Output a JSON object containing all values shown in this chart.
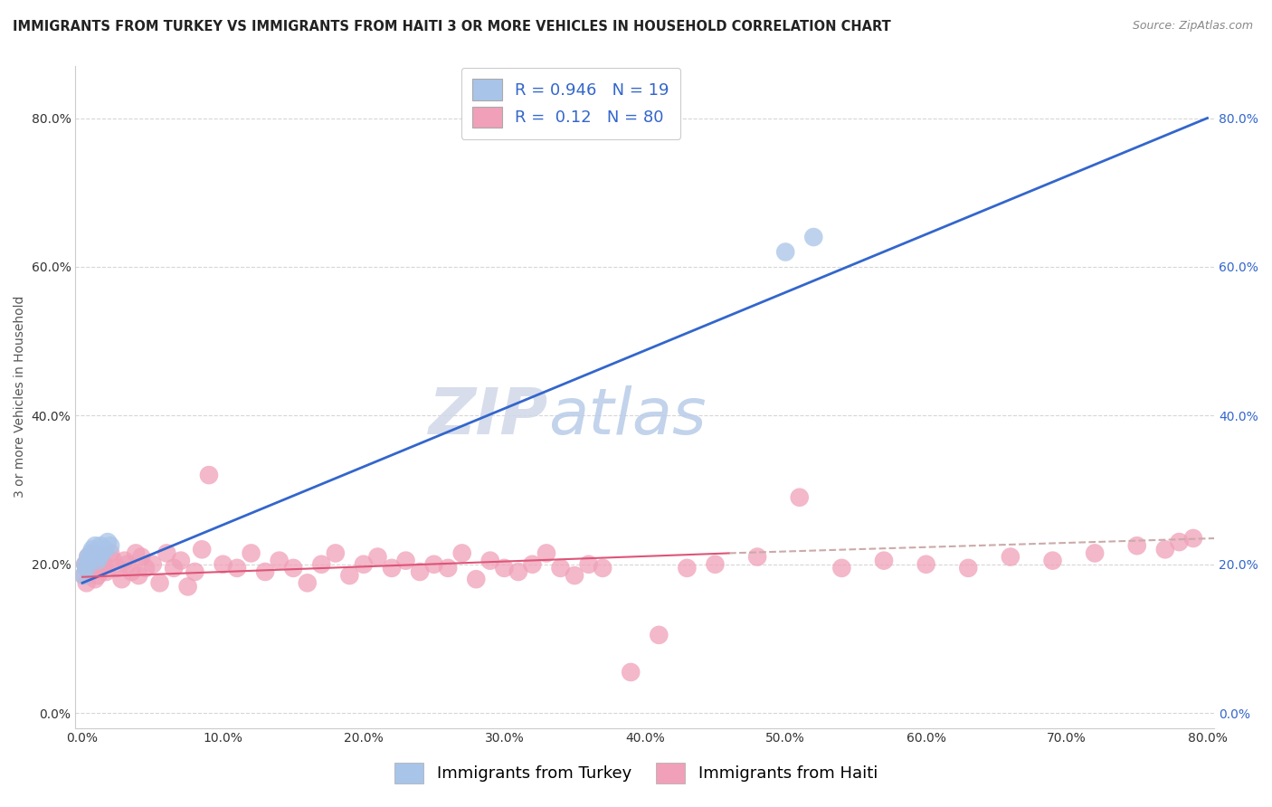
{
  "title": "IMMIGRANTS FROM TURKEY VS IMMIGRANTS FROM HAITI 3 OR MORE VEHICLES IN HOUSEHOLD CORRELATION CHART",
  "source": "Source: ZipAtlas.com",
  "ylabel": "3 or more Vehicles in Household",
  "legend_label1": "Immigrants from Turkey",
  "legend_label2": "Immigrants from Haiti",
  "turkey_R": 0.946,
  "turkey_N": 19,
  "haiti_R": 0.12,
  "haiti_N": 80,
  "turkey_color": "#a8c4e8",
  "haiti_color": "#f0a0b8",
  "turkey_line_color": "#3366cc",
  "haiti_line_color": "#dd5577",
  "haiti_line_dash_color": "#ccaaaa",
  "bg_color": "#ffffff",
  "grid_color": "#cccccc",
  "xlim": [
    -0.005,
    0.805
  ],
  "ylim": [
    -0.02,
    0.87
  ],
  "x_ticks": [
    0.0,
    0.1,
    0.2,
    0.3,
    0.4,
    0.5,
    0.6,
    0.7,
    0.8
  ],
  "y_ticks": [
    0.0,
    0.2,
    0.4,
    0.6,
    0.8
  ],
  "turkey_x": [
    0.001,
    0.002,
    0.003,
    0.004,
    0.005,
    0.006,
    0.007,
    0.008,
    0.009,
    0.01,
    0.011,
    0.012,
    0.013,
    0.014,
    0.016,
    0.018,
    0.02,
    0.5,
    0.52
  ],
  "turkey_y": [
    0.185,
    0.2,
    0.195,
    0.21,
    0.205,
    0.215,
    0.22,
    0.21,
    0.225,
    0.215,
    0.205,
    0.21,
    0.225,
    0.215,
    0.22,
    0.23,
    0.225,
    0.62,
    0.64
  ],
  "haiti_x": [
    0.001,
    0.002,
    0.003,
    0.004,
    0.005,
    0.006,
    0.007,
    0.008,
    0.009,
    0.01,
    0.011,
    0.012,
    0.013,
    0.015,
    0.017,
    0.02,
    0.022,
    0.025,
    0.028,
    0.03,
    0.032,
    0.035,
    0.038,
    0.04,
    0.042,
    0.045,
    0.05,
    0.055,
    0.06,
    0.065,
    0.07,
    0.075,
    0.08,
    0.085,
    0.09,
    0.1,
    0.11,
    0.12,
    0.13,
    0.14,
    0.15,
    0.16,
    0.17,
    0.18,
    0.19,
    0.2,
    0.21,
    0.22,
    0.23,
    0.24,
    0.25,
    0.26,
    0.27,
    0.28,
    0.29,
    0.3,
    0.31,
    0.32,
    0.33,
    0.34,
    0.35,
    0.36,
    0.37,
    0.39,
    0.41,
    0.43,
    0.45,
    0.48,
    0.51,
    0.54,
    0.57,
    0.6,
    0.63,
    0.66,
    0.69,
    0.72,
    0.75,
    0.77,
    0.78,
    0.79
  ],
  "haiti_y": [
    0.185,
    0.2,
    0.175,
    0.21,
    0.19,
    0.205,
    0.195,
    0.215,
    0.18,
    0.2,
    0.185,
    0.195,
    0.21,
    0.2,
    0.19,
    0.215,
    0.205,
    0.195,
    0.18,
    0.205,
    0.2,
    0.19,
    0.215,
    0.185,
    0.21,
    0.195,
    0.2,
    0.175,
    0.215,
    0.195,
    0.205,
    0.17,
    0.19,
    0.22,
    0.32,
    0.2,
    0.195,
    0.215,
    0.19,
    0.205,
    0.195,
    0.175,
    0.2,
    0.215,
    0.185,
    0.2,
    0.21,
    0.195,
    0.205,
    0.19,
    0.2,
    0.195,
    0.215,
    0.18,
    0.205,
    0.195,
    0.19,
    0.2,
    0.215,
    0.195,
    0.185,
    0.2,
    0.195,
    0.055,
    0.105,
    0.195,
    0.2,
    0.21,
    0.29,
    0.195,
    0.205,
    0.2,
    0.195,
    0.21,
    0.205,
    0.215,
    0.225,
    0.22,
    0.23,
    0.235
  ],
  "watermark_zip": "ZIP",
  "watermark_atlas": "atlas",
  "title_fontsize": 10.5,
  "axis_label_fontsize": 10,
  "tick_fontsize": 10,
  "legend_fontsize": 13
}
